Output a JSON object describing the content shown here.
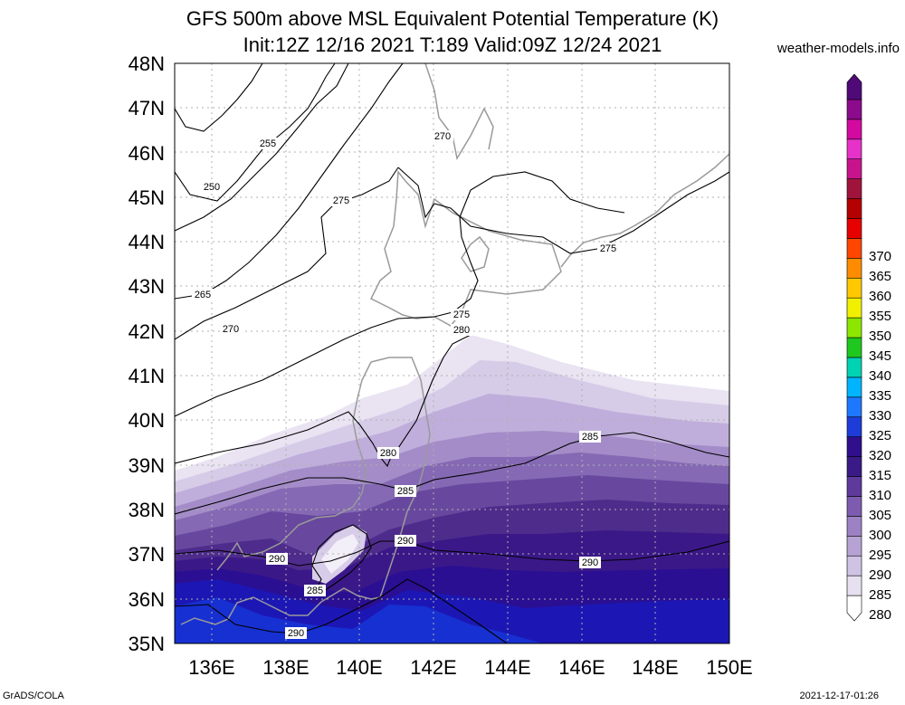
{
  "title_line1": "GFS 500m above MSL Equivalent Potential Temperature (K)",
  "title_line2": "Init:12Z 12/16 2021 T:189 Valid:09Z 12/24 2021",
  "site": "weather-models.info",
  "footer_left": "GrADS/COLA",
  "footer_right": "2021-12-17-01:26",
  "lat_labels": [
    "48N",
    "47N",
    "46N",
    "45N",
    "44N",
    "43N",
    "42N",
    "41N",
    "40N",
    "39N",
    "38N",
    "37N",
    "36N",
    "35N"
  ],
  "lon_labels": [
    "136E",
    "138E",
    "140E",
    "142E",
    "144E",
    "146E",
    "148E",
    "150E"
  ],
  "colorbar": {
    "levels": [
      "280",
      "285",
      "290",
      "295",
      "300",
      "305",
      "310",
      "315",
      "320",
      "325",
      "330",
      "335",
      "340",
      "345",
      "350",
      "355",
      "360",
      "365",
      "370"
    ],
    "colors": [
      "#ffffff",
      "#e6e0f0",
      "#cfc3e3",
      "#b6a3d4",
      "#9c82c4",
      "#7d5cb0",
      "#5d3a9c",
      "#3a1a86",
      "#2f0f8c",
      "#1e3cd8",
      "#1e78ff",
      "#00b4ff",
      "#00d2b4",
      "#1ec81e",
      "#8ce600",
      "#f0f000",
      "#ffc800",
      "#ff8c00",
      "#ff4600",
      "#e60000",
      "#b40000",
      "#a0143c",
      "#c8148c",
      "#e632c8",
      "#d20aa0",
      "#8c0a8c",
      "#500a78"
    ]
  },
  "contour_labels": [
    {
      "text": "255"
    },
    {
      "text": "250"
    },
    {
      "text": "275"
    },
    {
      "text": "270"
    },
    {
      "text": "265"
    },
    {
      "text": "270"
    },
    {
      "text": "275"
    },
    {
      "text": "275"
    },
    {
      "text": "280"
    },
    {
      "text": "280"
    },
    {
      "text": "285"
    },
    {
      "text": "285"
    },
    {
      "text": "290"
    },
    {
      "text": "290"
    },
    {
      "text": "285"
    },
    {
      "text": "290"
    },
    {
      "text": "290"
    }
  ]
}
